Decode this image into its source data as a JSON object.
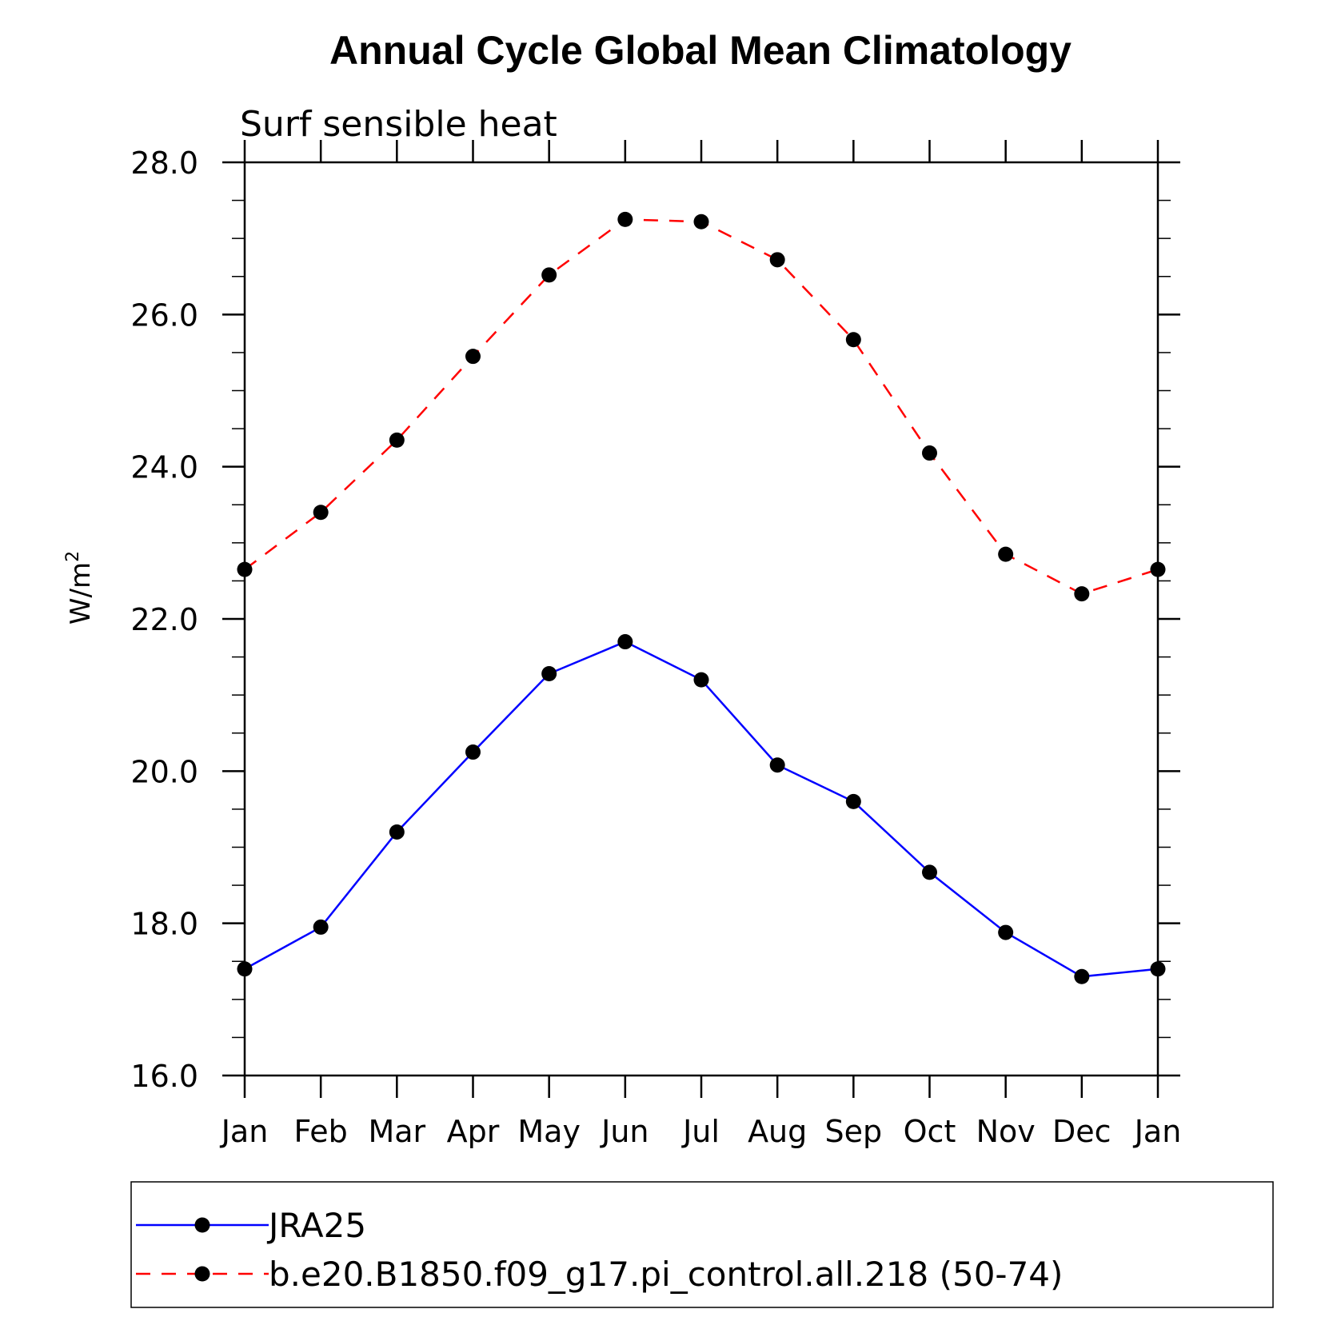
{
  "chart_data": {
    "type": "line",
    "title": "Annual Cycle Global Mean Climatology",
    "subtitle": "Surf sensible heat",
    "ylabel": "W/m",
    "ylabel_superscript": "2",
    "xlabel": "",
    "categories": [
      "Jan",
      "Feb",
      "Mar",
      "Apr",
      "May",
      "Jun",
      "Jul",
      "Aug",
      "Sep",
      "Oct",
      "Nov",
      "Dec",
      "Jan"
    ],
    "ylim": [
      16.0,
      28.0
    ],
    "yticks": [
      "16.0",
      "18.0",
      "20.0",
      "22.0",
      "24.0",
      "26.0",
      "28.0"
    ],
    "grid": false,
    "legend_position": "bottom",
    "series": [
      {
        "name": "JRA25",
        "color": "#0000ff",
        "dash": "solid",
        "values": [
          17.4,
          17.95,
          19.2,
          20.25,
          21.28,
          21.7,
          21.2,
          20.08,
          19.6,
          18.67,
          17.88,
          17.3,
          17.4
        ]
      },
      {
        "name": "b.e20.B1850.f09_g17.pi_control.all.218 (50-74)",
        "color": "#ff0000",
        "dash": "dashed",
        "values": [
          22.65,
          23.4,
          24.35,
          25.45,
          26.52,
          27.25,
          27.22,
          26.72,
          25.67,
          24.18,
          22.85,
          22.33,
          22.65
        ]
      }
    ]
  }
}
